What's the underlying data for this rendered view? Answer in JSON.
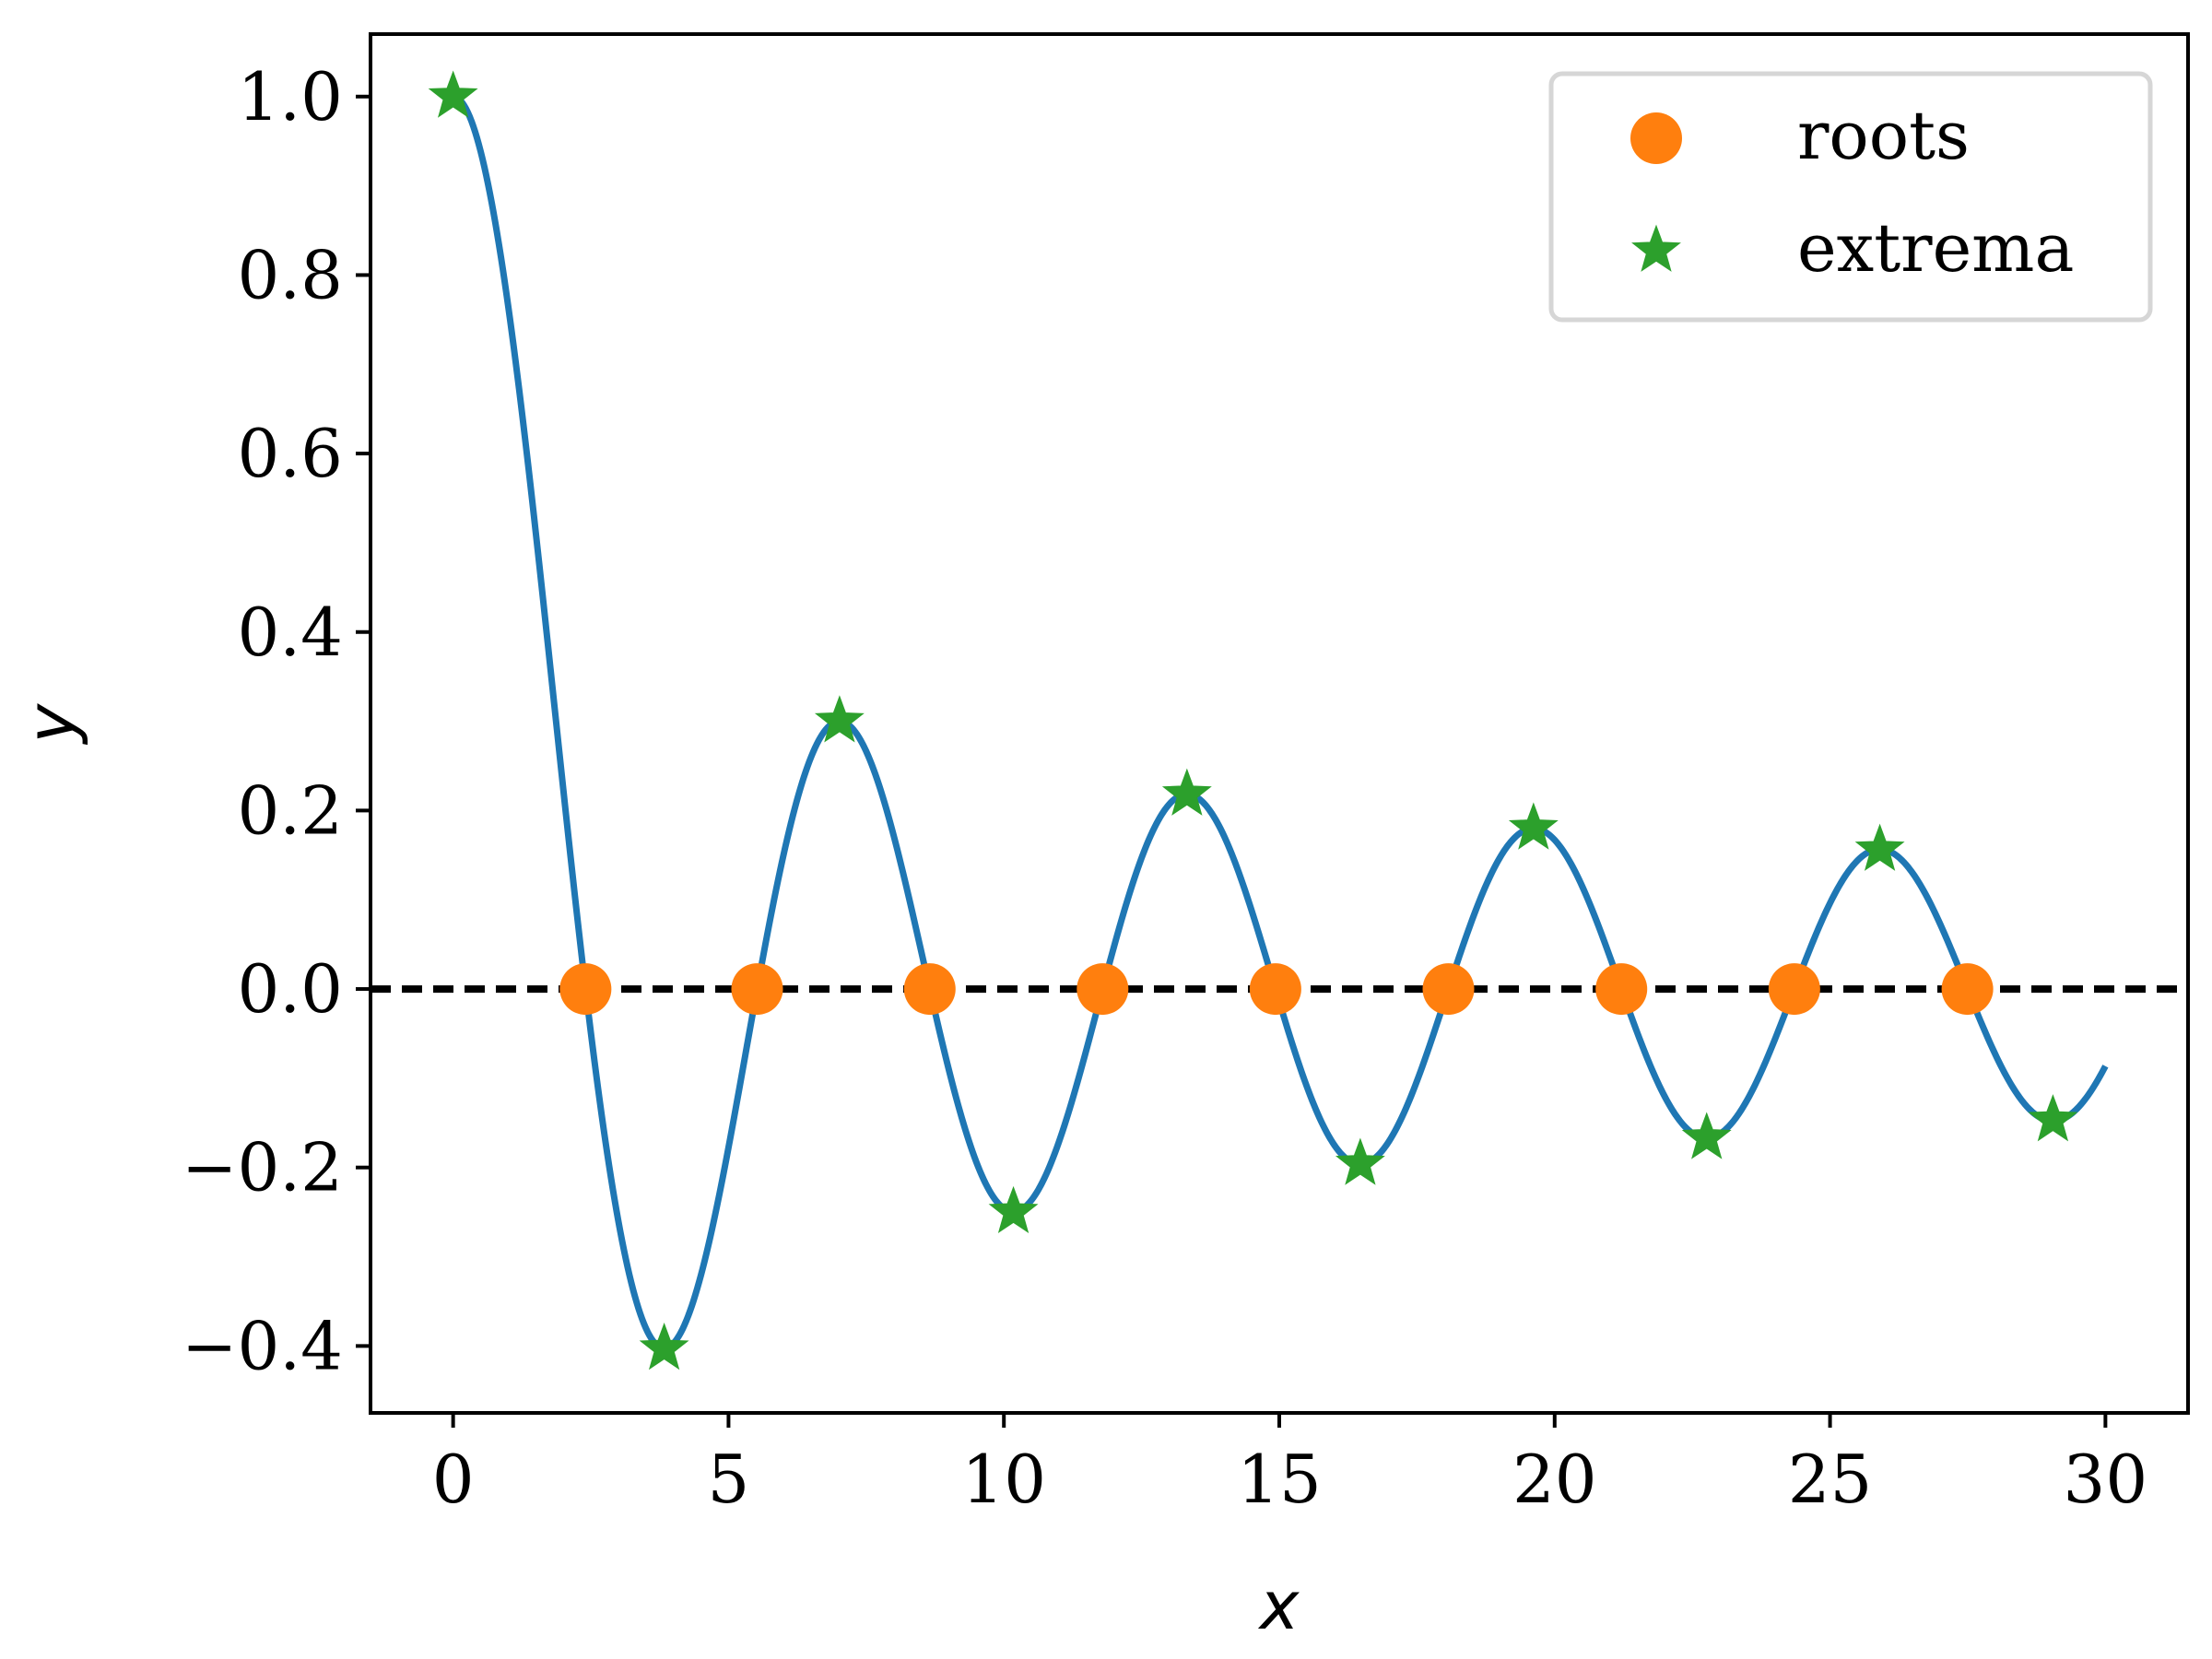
{
  "chart_data": {
    "type": "line",
    "title": "",
    "xlabel": "x",
    "ylabel": "y",
    "xlim": [
      -1.5,
      31.5
    ],
    "ylim": [
      -0.475,
      1.07
    ],
    "xticks": [
      0,
      5,
      10,
      15,
      20,
      25,
      30
    ],
    "xtick_labels": [
      "0",
      "5",
      "10",
      "15",
      "20",
      "25",
      "30"
    ],
    "yticks": [
      -0.4,
      -0.2,
      0.0,
      0.2,
      0.4,
      0.6,
      0.8,
      1.0
    ],
    "ytick_labels": [
      "−0.4",
      "−0.2",
      "0.0",
      "0.2",
      "0.4",
      "0.6",
      "0.8",
      "1.0"
    ],
    "grid": false,
    "legend_position": "top-right",
    "series": [
      {
        "kind": "curve",
        "function": "J0",
        "x_range": [
          0,
          30
        ],
        "color": "#1f77b4"
      },
      {
        "kind": "reference-line",
        "y": 0,
        "style": "dashed",
        "color": "#000000"
      },
      {
        "name": "roots",
        "kind": "markers",
        "marker": "circle",
        "color": "#ff7f0e",
        "x": [
          2.405,
          5.52,
          8.654,
          11.792,
          14.931,
          18.071,
          21.212,
          24.352,
          27.494
        ],
        "y": [
          0,
          0,
          0,
          0,
          0,
          0,
          0,
          0,
          0
        ]
      },
      {
        "name": "extrema",
        "kind": "markers",
        "marker": "star",
        "color": "#2ca02c",
        "x": [
          0,
          3.832,
          7.016,
          10.173,
          13.324,
          16.471,
          19.616,
          22.76,
          25.904,
          29.047
        ],
        "y": [
          1.0,
          -0.403,
          0.3,
          -0.25,
          0.218,
          -0.196,
          0.18,
          -0.167,
          0.156,
          -0.147
        ]
      }
    ]
  }
}
